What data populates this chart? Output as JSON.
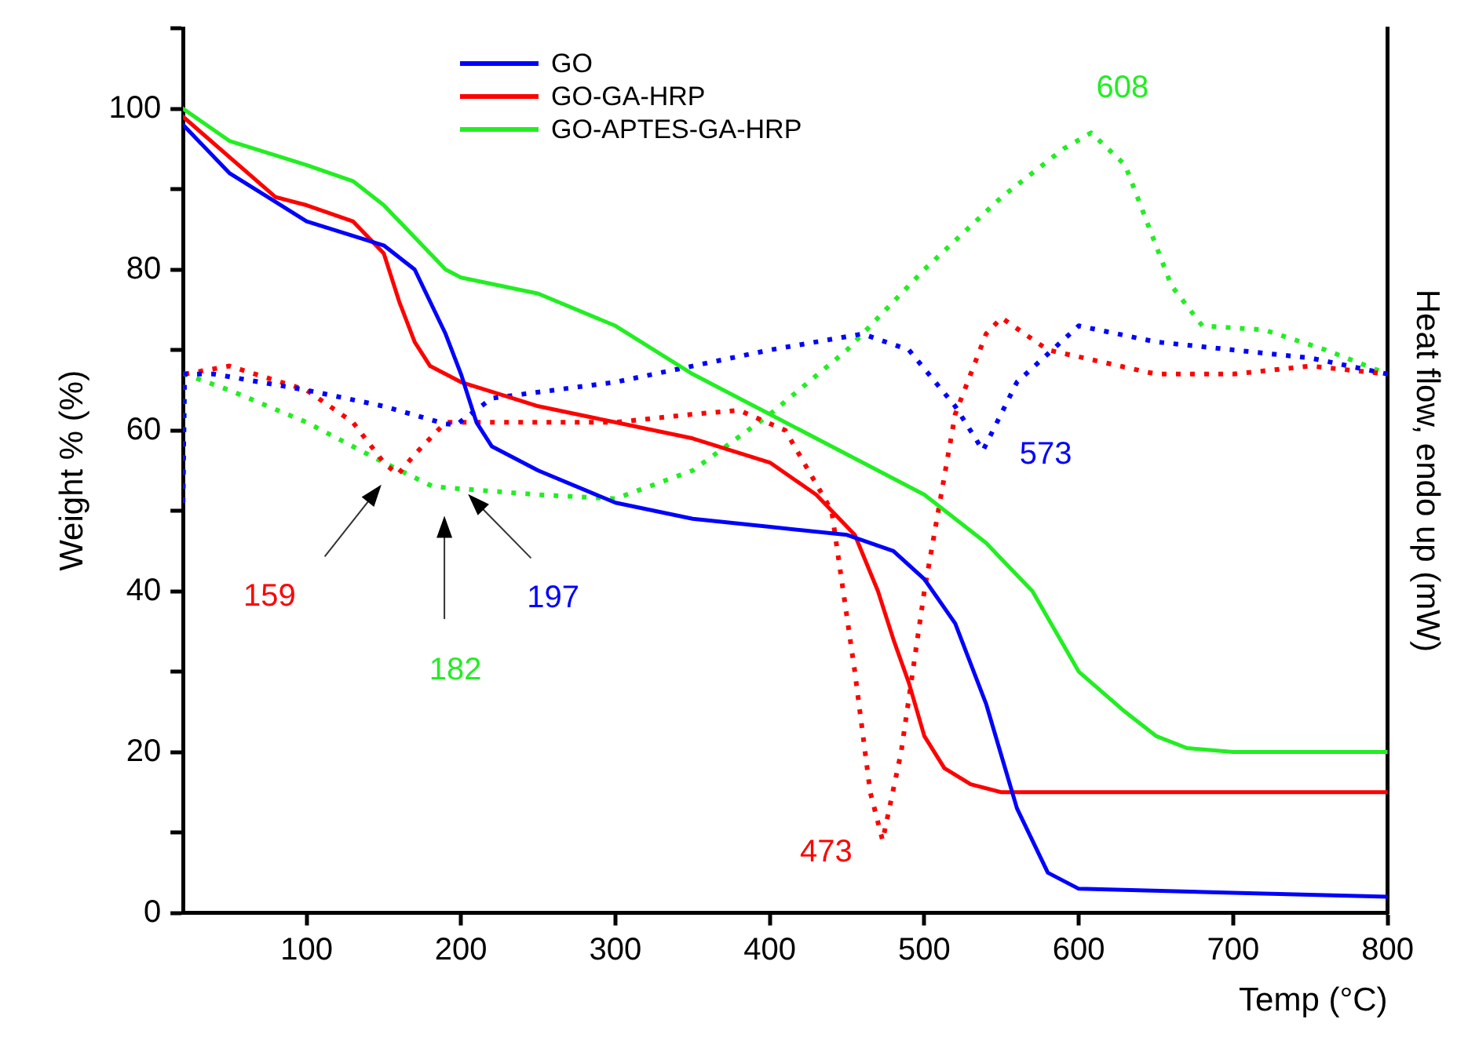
{
  "chart_data": {
    "type": "line",
    "xlabel": "Temp (°C)",
    "ylabel": "Weight % (%)",
    "y2label": "Heat flow, endo up (mW)",
    "xlim": [
      20,
      800
    ],
    "xticks": [
      100,
      200,
      300,
      400,
      500,
      600,
      700,
      800
    ],
    "ylim": [
      0,
      110
    ],
    "yticks": [
      0,
      {
        "value": 10,
        "label": null
      },
      20,
      {
        "value": 30,
        "label": null
      },
      40,
      {
        "value": 50,
        "label": null
      },
      60,
      {
        "value": 70,
        "label": null
      },
      80,
      {
        "value": 90,
        "label": null
      },
      100,
      {
        "value": 110,
        "label": null
      }
    ],
    "grid": false,
    "legend": "top",
    "marker": "none",
    "series": [
      {
        "name": "GO",
        "color": "#0000ff",
        "x": [
          20,
          50,
          100,
          150,
          170,
          190,
          200,
          210,
          220,
          250,
          300,
          350,
          400,
          450,
          480,
          500,
          520,
          540,
          560,
          580,
          600,
          700,
          800
        ],
        "values": [
          98,
          92,
          86,
          83,
          80,
          72,
          67,
          61,
          58,
          55,
          51,
          49,
          48,
          47,
          45,
          41.5,
          36,
          26,
          13,
          5,
          3,
          2.5,
          2
        ]
      },
      {
        "name": "GO-GA-HRP",
        "color": "#ff0000",
        "x": [
          20,
          50,
          80,
          100,
          130,
          150,
          160,
          170,
          180,
          200,
          250,
          300,
          350,
          400,
          430,
          455,
          470,
          480,
          490,
          500,
          513,
          530,
          550,
          800
        ],
        "values": [
          99,
          94,
          89,
          88,
          86,
          82,
          76,
          71,
          68,
          66,
          63,
          61,
          59,
          56,
          52,
          47,
          40,
          34,
          28.6,
          22,
          18,
          16,
          15,
          15
        ]
      },
      {
        "name": "GO-APTES-GA-HRP",
        "color": "#22ee22",
        "x": [
          20,
          50,
          100,
          130,
          150,
          170,
          190,
          200,
          250,
          300,
          350,
          400,
          450,
          500,
          540,
          570,
          600,
          630,
          650,
          670,
          700,
          800
        ],
        "values": [
          100,
          96,
          93,
          91,
          88,
          84,
          80,
          79,
          77,
          73,
          67,
          62,
          57,
          52,
          46,
          40,
          30,
          25,
          22,
          20.5,
          20,
          20
        ]
      },
      {
        "color": "#0000ff",
        "line_style": "dotted",
        "x": [
          20,
          21,
          40,
          100,
          150,
          190,
          197,
          220,
          300,
          400,
          460,
          490,
          520,
          538,
          560,
          600,
          650,
          700,
          750,
          800
        ],
        "values": [
          51,
          67,
          67,
          65,
          63,
          60.8,
          60.7,
          64,
          66,
          70,
          72,
          70,
          63,
          57.5,
          66,
          73,
          71,
          70,
          69,
          67
        ]
      },
      {
        "color": "#ff0000",
        "line_style": "dotted",
        "x": [
          21,
          50,
          100,
          130,
          150,
          159,
          170,
          190,
          220,
          300,
          350,
          380,
          410,
          440,
          455,
          465,
          473,
          485,
          500,
          520,
          540,
          550,
          580,
          650,
          700,
          750,
          800
        ],
        "values": [
          67,
          68,
          65,
          61,
          56,
          54.5,
          57,
          61,
          61,
          61,
          62,
          62.5,
          60,
          50,
          30,
          15,
          9,
          20,
          40,
          62,
          72,
          74,
          70,
          67,
          67,
          68,
          67
        ]
      },
      {
        "color": "#22ee22",
        "line_style": "dotted",
        "x": [
          20,
          21,
          50,
          100,
          150,
          182,
          250,
          300,
          350,
          400,
          450,
          500,
          550,
          590,
          608,
          630,
          660,
          680,
          720,
          760,
          800
        ],
        "values": [
          51,
          67,
          65,
          61,
          56,
          53,
          52,
          51.5,
          55,
          62,
          70,
          80,
          89,
          95,
          97,
          93,
          78,
          73,
          72.5,
          70,
          67
        ]
      }
    ],
    "annotations": [
      "159",
      "182",
      "197",
      {
        "text": "473",
        "x": 473,
        "y": 9
      },
      {
        "text": "573",
        "x": 538,
        "y": 57.5
      },
      {
        "text": "608",
        "x": 608,
        "y": 97
      }
    ]
  }
}
